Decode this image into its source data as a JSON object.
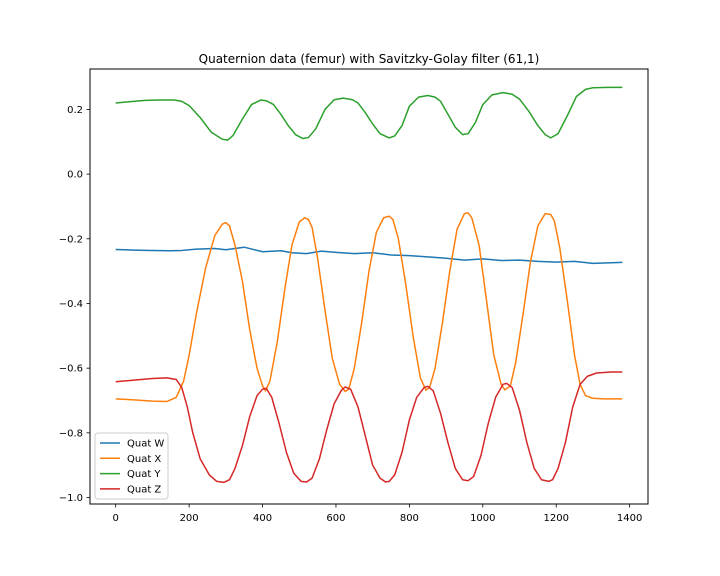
{
  "chart_data": {
    "type": "line",
    "title": "Quaternion data (femur) with Savitzky-Golay filter (61,1)",
    "xlabel": "",
    "ylabel": "",
    "xlim": [
      -70,
      1450
    ],
    "ylim": [
      -1.02,
      0.325
    ],
    "xticks": [
      0,
      200,
      400,
      600,
      800,
      1000,
      1200,
      1400
    ],
    "yticks": [
      -1.0,
      -0.8,
      -0.6,
      -0.4,
      -0.2,
      0.0,
      0.2
    ],
    "xtick_labels": [
      "0",
      "200",
      "400",
      "600",
      "800",
      "1000",
      "1200",
      "1400"
    ],
    "ytick_labels": [
      "−1.0",
      "−0.8",
      "−0.6",
      "−0.4",
      "−0.2",
      "0.0",
      "0.2"
    ],
    "grid": false,
    "legend_position": "lower-left",
    "series": [
      {
        "name": "Quat W",
        "color": "#1f77b4",
        "x": [
          0,
          50,
          100,
          150,
          180,
          220,
          270,
          300,
          350,
          400,
          450,
          480,
          520,
          560,
          600,
          650,
          700,
          750,
          800,
          850,
          900,
          950,
          1000,
          1050,
          1100,
          1150,
          1200,
          1250,
          1300,
          1380
        ],
        "y": [
          -0.233,
          -0.235,
          -0.236,
          -0.237,
          -0.236,
          -0.232,
          -0.23,
          -0.234,
          -0.226,
          -0.24,
          -0.237,
          -0.243,
          -0.246,
          -0.238,
          -0.242,
          -0.246,
          -0.243,
          -0.25,
          -0.252,
          -0.256,
          -0.26,
          -0.266,
          -0.262,
          -0.267,
          -0.266,
          -0.27,
          -0.272,
          -0.27,
          -0.276,
          -0.273
        ]
      },
      {
        "name": "Quat X",
        "color": "#ff7f0e",
        "x": [
          0,
          50,
          100,
          140,
          165,
          185,
          200,
          220,
          245,
          270,
          290,
          300,
          310,
          325,
          345,
          365,
          385,
          400,
          408,
          420,
          440,
          460,
          480,
          500,
          515,
          525,
          535,
          550,
          570,
          590,
          610,
          625,
          635,
          650,
          670,
          690,
          710,
          730,
          745,
          755,
          770,
          790,
          810,
          830,
          845,
          855,
          870,
          890,
          910,
          930,
          950,
          960,
          970,
          990,
          1010,
          1030,
          1050,
          1060,
          1075,
          1090,
          1110,
          1130,
          1150,
          1170,
          1185,
          1195,
          1210,
          1230,
          1250,
          1265,
          1280,
          1300,
          1330,
          1380
        ],
        "y": [
          -0.695,
          -0.698,
          -0.702,
          -0.703,
          -0.69,
          -0.64,
          -0.56,
          -0.43,
          -0.29,
          -0.19,
          -0.155,
          -0.15,
          -0.16,
          -0.22,
          -0.33,
          -0.48,
          -0.6,
          -0.655,
          -0.67,
          -0.64,
          -0.52,
          -0.36,
          -0.22,
          -0.148,
          -0.135,
          -0.14,
          -0.165,
          -0.26,
          -0.42,
          -0.57,
          -0.65,
          -0.672,
          -0.665,
          -0.6,
          -0.46,
          -0.3,
          -0.18,
          -0.135,
          -0.13,
          -0.14,
          -0.2,
          -0.34,
          -0.5,
          -0.63,
          -0.668,
          -0.66,
          -0.6,
          -0.46,
          -0.3,
          -0.17,
          -0.122,
          -0.12,
          -0.135,
          -0.22,
          -0.39,
          -0.56,
          -0.65,
          -0.667,
          -0.655,
          -0.58,
          -0.43,
          -0.27,
          -0.16,
          -0.122,
          -0.125,
          -0.145,
          -0.23,
          -0.39,
          -0.56,
          -0.65,
          -0.685,
          -0.693,
          -0.695,
          -0.695
        ]
      },
      {
        "name": "Quat Y",
        "color": "#2ca02c",
        "x": [
          0,
          40,
          80,
          120,
          160,
          180,
          200,
          230,
          260,
          290,
          305,
          320,
          345,
          370,
          395,
          410,
          430,
          450,
          470,
          490,
          510,
          525,
          545,
          570,
          595,
          620,
          645,
          660,
          680,
          700,
          720,
          745,
          760,
          780,
          800,
          825,
          850,
          870,
          885,
          905,
          925,
          945,
          960,
          980,
          1000,
          1025,
          1055,
          1080,
          1100,
          1125,
          1150,
          1170,
          1185,
          1205,
          1230,
          1255,
          1280,
          1300,
          1340,
          1380
        ],
        "y": [
          0.22,
          0.224,
          0.228,
          0.229,
          0.229,
          0.225,
          0.212,
          0.175,
          0.13,
          0.108,
          0.105,
          0.12,
          0.17,
          0.215,
          0.229,
          0.227,
          0.215,
          0.185,
          0.15,
          0.122,
          0.11,
          0.113,
          0.14,
          0.2,
          0.23,
          0.235,
          0.23,
          0.22,
          0.19,
          0.155,
          0.125,
          0.112,
          0.118,
          0.15,
          0.21,
          0.238,
          0.243,
          0.238,
          0.225,
          0.185,
          0.145,
          0.122,
          0.125,
          0.16,
          0.215,
          0.245,
          0.252,
          0.247,
          0.232,
          0.195,
          0.15,
          0.122,
          0.112,
          0.125,
          0.18,
          0.24,
          0.262,
          0.267,
          0.268,
          0.268
        ],
        "dummy": null
      },
      {
        "name": "Quat Z",
        "color": "#d62728",
        "x": [
          0,
          50,
          100,
          140,
          165,
          180,
          195,
          210,
          230,
          255,
          275,
          295,
          310,
          325,
          345,
          365,
          385,
          400,
          410,
          425,
          445,
          465,
          485,
          505,
          520,
          535,
          555,
          575,
          595,
          615,
          625,
          640,
          660,
          680,
          700,
          720,
          735,
          745,
          760,
          780,
          800,
          820,
          840,
          850,
          865,
          885,
          905,
          925,
          945,
          960,
          975,
          995,
          1015,
          1035,
          1055,
          1065,
          1080,
          1100,
          1120,
          1140,
          1160,
          1180,
          1190,
          1205,
          1225,
          1245,
          1265,
          1285,
          1310,
          1350,
          1380
        ],
        "y": [
          -0.642,
          -0.637,
          -0.632,
          -0.63,
          -0.635,
          -0.66,
          -0.72,
          -0.8,
          -0.88,
          -0.93,
          -0.95,
          -0.953,
          -0.945,
          -0.91,
          -0.84,
          -0.75,
          -0.685,
          -0.665,
          -0.662,
          -0.69,
          -0.77,
          -0.86,
          -0.925,
          -0.95,
          -0.952,
          -0.94,
          -0.88,
          -0.79,
          -0.71,
          -0.668,
          -0.658,
          -0.665,
          -0.72,
          -0.81,
          -0.9,
          -0.94,
          -0.952,
          -0.95,
          -0.93,
          -0.86,
          -0.76,
          -0.69,
          -0.66,
          -0.656,
          -0.67,
          -0.74,
          -0.83,
          -0.91,
          -0.945,
          -0.948,
          -0.935,
          -0.87,
          -0.77,
          -0.69,
          -0.65,
          -0.647,
          -0.66,
          -0.73,
          -0.83,
          -0.91,
          -0.945,
          -0.95,
          -0.945,
          -0.91,
          -0.83,
          -0.72,
          -0.65,
          -0.625,
          -0.615,
          -0.612,
          -0.612
        ]
      }
    ]
  }
}
